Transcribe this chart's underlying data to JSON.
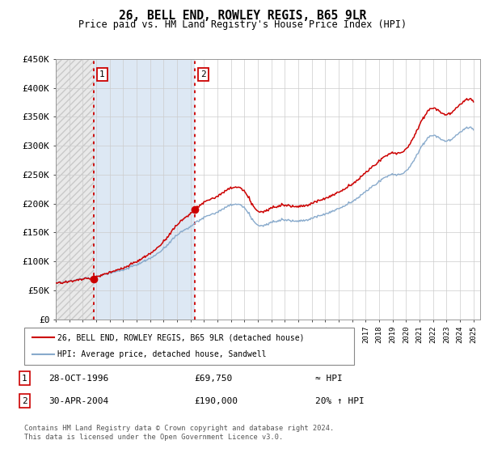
{
  "title": "26, BELL END, ROWLEY REGIS, B65 9LR",
  "subtitle": "Price paid vs. HM Land Registry's House Price Index (HPI)",
  "ylabel_ticks": [
    "£0",
    "£50K",
    "£100K",
    "£150K",
    "£200K",
    "£250K",
    "£300K",
    "£350K",
    "£400K",
    "£450K"
  ],
  "ytick_values": [
    0,
    50000,
    100000,
    150000,
    200000,
    250000,
    300000,
    350000,
    400000,
    450000
  ],
  "ylim": [
    0,
    450000
  ],
  "xlim_start": 1994,
  "xlim_end": 2025.5,
  "purchase1_x": 1996.83,
  "purchase1_y": 69750,
  "purchase2_x": 2004.33,
  "purchase2_y": 190000,
  "purchase1_label": "1",
  "purchase2_label": "2",
  "legend_line1": "26, BELL END, ROWLEY REGIS, B65 9LR (detached house)",
  "legend_line2": "HPI: Average price, detached house, Sandwell",
  "table_row1_num": "1",
  "table_row1_date": "28-OCT-1996",
  "table_row1_price": "£69,750",
  "table_row1_hpi": "≈ HPI",
  "table_row2_num": "2",
  "table_row2_date": "30-APR-2004",
  "table_row2_price": "£190,000",
  "table_row2_hpi": "20% ↑ HPI",
  "footer": "Contains HM Land Registry data © Crown copyright and database right 2024.\nThis data is licensed under the Open Government Licence v3.0.",
  "line_color_red": "#cc0000",
  "line_color_blue": "#88aacc",
  "hatch_left_color": "#e8e8e8",
  "mid_region_color": "#dde8f4",
  "bg_plot": "#ffffff",
  "grid_color": "#cccccc",
  "hpi_keypoints_x": [
    1994,
    1995,
    1996,
    1997,
    1998,
    1999,
    2000,
    2001,
    2002,
    2003,
    2004,
    2005,
    2006,
    2007,
    2008,
    2009,
    2010,
    2011,
    2012,
    2013,
    2014,
    2015,
    2016,
    2017,
    2018,
    2019,
    2020,
    2021,
    2022,
    2023,
    2024,
    2025
  ],
  "hpi_keypoints_y": [
    63000,
    66000,
    70000,
    74000,
    79000,
    85000,
    94000,
    105000,
    122000,
    145000,
    160000,
    175000,
    185000,
    197000,
    192000,
    163000,
    168000,
    172000,
    171000,
    175000,
    183000,
    192000,
    205000,
    222000,
    240000,
    252000,
    258000,
    295000,
    320000,
    310000,
    325000,
    330000
  ]
}
